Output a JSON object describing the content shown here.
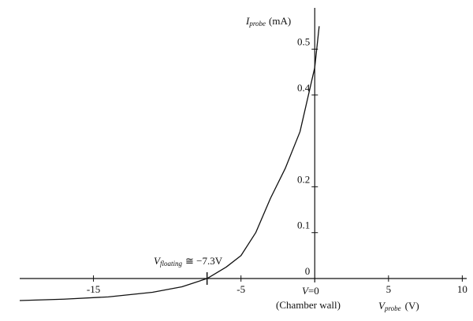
{
  "chart_data": {
    "type": "line",
    "y_label": {
      "symbol": "I",
      "sub": "probe",
      "unit": "(mA)"
    },
    "x_label": {
      "symbol": "V",
      "sub": "probe",
      "unit": "(V)"
    },
    "floating_label": {
      "symbol": "V",
      "sub": "floating",
      "text": "≅ −7.3V"
    },
    "floating_potential": -7.3,
    "zero_label": {
      "symbol": "V",
      "text": "=0"
    },
    "wall_label": "(Chamber wall)",
    "x": [
      -20,
      -17,
      -14,
      -11,
      -9,
      -7.3,
      -6,
      -5,
      -4,
      -3,
      -2,
      -1,
      -0.5,
      0,
      0.3
    ],
    "series": [
      {
        "color": "#111111",
        "values": [
          -0.048,
          -0.045,
          -0.04,
          -0.03,
          -0.018,
          0,
          0.025,
          0.05,
          0.1,
          0.175,
          0.24,
          0.32,
          0.39,
          0.46,
          0.55
        ]
      }
    ],
    "xlim": [
      -20,
      10.3
    ],
    "ylim": [
      -0.06,
      0.59
    ],
    "xticks": [
      -15,
      -5,
      5,
      10
    ],
    "yticks": [
      0,
      0.1,
      0.2,
      0.4,
      0.5
    ]
  }
}
